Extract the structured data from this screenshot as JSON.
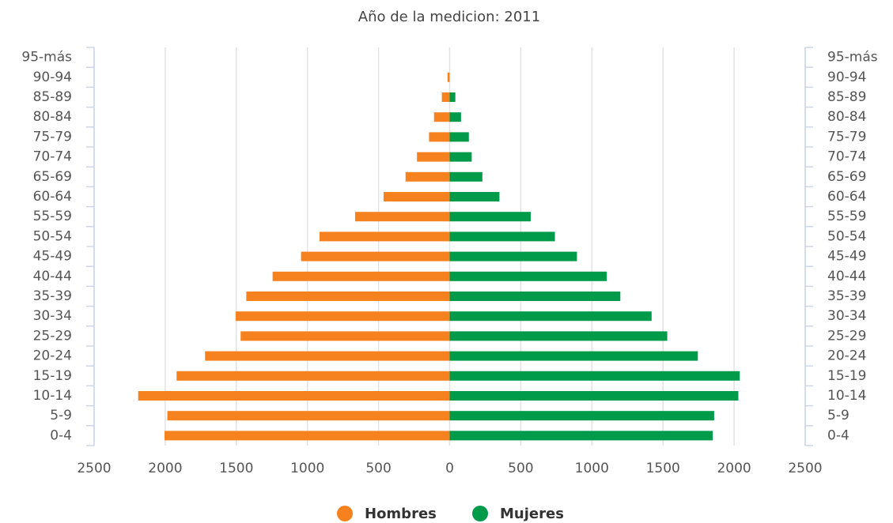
{
  "chart_data": {
    "type": "pyramid",
    "title": "Año de la medicion: 2011",
    "categories": [
      "0-4",
      "5-9",
      "10-14",
      "15-19",
      "20-24",
      "25-29",
      "30-34",
      "35-39",
      "40-44",
      "45-49",
      "50-54",
      "55-59",
      "60-64",
      "65-69",
      "70-74",
      "75-79",
      "80-84",
      "85-89",
      "90-94",
      "95-más"
    ],
    "series": [
      {
        "name": "Hombres",
        "color": "#f5821f",
        "values": [
          -2005,
          -1985,
          -2190,
          -1920,
          -1720,
          -1470,
          -1505,
          -1430,
          -1245,
          -1045,
          -915,
          -665,
          -465,
          -310,
          -230,
          -145,
          -110,
          -55,
          -15,
          0
        ]
      },
      {
        "name": "Mujeres",
        "color": "#009a4b",
        "values": [
          1850,
          1860,
          2030,
          2040,
          1745,
          1530,
          1420,
          1200,
          1105,
          895,
          740,
          570,
          350,
          230,
          155,
          135,
          80,
          40,
          0,
          0
        ]
      }
    ],
    "xlim": [
      -2500,
      2500
    ],
    "xticks": [
      {
        "value": -2500,
        "label": "2500"
      },
      {
        "value": -2000,
        "label": "2000"
      },
      {
        "value": -1500,
        "label": "1500"
      },
      {
        "value": -1000,
        "label": "1000"
      },
      {
        "value": -500,
        "label": "500"
      },
      0,
      500,
      1000,
      1500,
      2000,
      2500
    ],
    "grid": true
  }
}
